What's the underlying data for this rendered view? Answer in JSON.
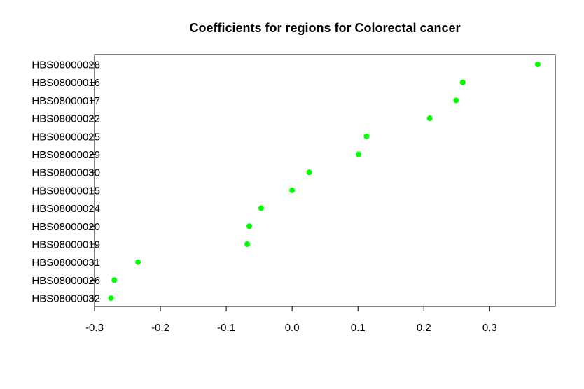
{
  "chart_data": {
    "type": "scatter",
    "title": "Coefficients for regions for Colorectal cancer",
    "xlabel": "",
    "ylabel": "",
    "xlim": [
      -0.3,
      0.4
    ],
    "x_ticks": [
      "-0.3",
      "-0.2",
      "-0.1",
      "0.0",
      "0.1",
      "0.2",
      "0.3"
    ],
    "x_tick_values": [
      -0.3,
      -0.2,
      -0.1,
      0.0,
      0.1,
      0.2,
      0.3
    ],
    "point_color": "#00ff00",
    "grid": false,
    "categories": [
      "HBS08000028",
      "HBS08000016",
      "HBS08000017",
      "HBS08000022",
      "HBS08000025",
      "HBS08000029",
      "HBS08000030",
      "HBS08000015",
      "HBS08000024",
      "HBS08000020",
      "HBS08000019",
      "HBS08000031",
      "HBS08000026",
      "HBS08000032"
    ],
    "values": [
      0.373,
      0.259,
      0.249,
      0.209,
      0.113,
      0.101,
      0.026,
      0.0,
      -0.047,
      -0.065,
      -0.068,
      -0.234,
      -0.27,
      -0.275
    ]
  }
}
